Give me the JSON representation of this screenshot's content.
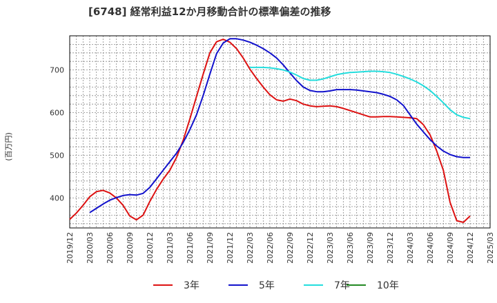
{
  "chart_data": {
    "type": "line",
    "title": "[6748]  経常利益12か月移動合計の標準偏差の推移",
    "ylabel": "(百万円)",
    "xlabel": "",
    "grid": true,
    "legend_position": "bottom",
    "ylim": [
      330,
      780
    ],
    "y_ticks": [
      400,
      500,
      600,
      700
    ],
    "x_range": [
      "2019-12",
      "2025-03"
    ],
    "x_ticks": [
      "2019/12",
      "2020/03",
      "2020/06",
      "2020/09",
      "2020/12",
      "2021/03",
      "2021/06",
      "2021/09",
      "2021/12",
      "2022/03",
      "2022/06",
      "2022/09",
      "2022/12",
      "2023/03",
      "2023/06",
      "2023/09",
      "2023/12",
      "2024/03",
      "2024/06",
      "2024/09",
      "2024/12",
      "2025/03"
    ],
    "series": [
      {
        "name": "3年",
        "color": "#dd1111",
        "x": [
          "2019-12",
          "2020-01",
          "2020-02",
          "2020-03",
          "2020-04",
          "2020-05",
          "2020-06",
          "2020-07",
          "2020-08",
          "2020-09",
          "2020-10",
          "2020-11",
          "2020-12",
          "2021-01",
          "2021-02",
          "2021-03",
          "2021-04",
          "2021-05",
          "2021-06",
          "2021-07",
          "2021-08",
          "2021-09",
          "2021-10",
          "2021-11",
          "2021-12",
          "2022-01",
          "2022-02",
          "2022-03",
          "2022-04",
          "2022-05",
          "2022-06",
          "2022-07",
          "2022-08",
          "2022-09",
          "2022-10",
          "2022-11",
          "2022-12",
          "2023-01",
          "2023-02",
          "2023-03",
          "2023-04",
          "2023-05",
          "2023-06",
          "2023-07",
          "2023-08",
          "2023-09",
          "2023-10",
          "2023-11",
          "2023-12",
          "2024-01",
          "2024-02",
          "2024-03",
          "2024-04",
          "2024-05",
          "2024-06",
          "2024-07",
          "2024-08",
          "2024-09",
          "2024-10",
          "2024-11",
          "2024-12"
        ],
        "y": [
          350,
          365,
          383,
          403,
          415,
          418,
          412,
          400,
          383,
          358,
          349,
          360,
          392,
          420,
          444,
          465,
          495,
          535,
          585,
          638,
          690,
          740,
          766,
          772,
          765,
          750,
          728,
          702,
          680,
          660,
          642,
          630,
          627,
          632,
          628,
          620,
          616,
          614,
          615,
          616,
          614,
          610,
          605,
          600,
          595,
          590,
          590,
          591,
          591,
          590,
          589,
          588,
          586,
          572,
          548,
          510,
          465,
          390,
          347,
          343,
          358
        ]
      },
      {
        "name": "5年",
        "color": "#1111cc",
        "x": [
          "2020-03",
          "2020-04",
          "2020-05",
          "2020-06",
          "2020-07",
          "2020-08",
          "2020-09",
          "2020-10",
          "2020-11",
          "2020-12",
          "2021-01",
          "2021-02",
          "2021-03",
          "2021-04",
          "2021-05",
          "2021-06",
          "2021-07",
          "2021-08",
          "2021-09",
          "2021-10",
          "2021-11",
          "2021-12",
          "2022-01",
          "2022-02",
          "2022-03",
          "2022-04",
          "2022-05",
          "2022-06",
          "2022-07",
          "2022-08",
          "2022-09",
          "2022-10",
          "2022-11",
          "2022-12",
          "2023-01",
          "2023-02",
          "2023-03",
          "2023-04",
          "2023-05",
          "2023-06",
          "2023-07",
          "2023-08",
          "2023-09",
          "2023-10",
          "2023-11",
          "2023-12",
          "2024-01",
          "2024-02",
          "2024-03",
          "2024-04",
          "2024-05",
          "2024-06",
          "2024-07",
          "2024-08",
          "2024-09",
          "2024-10",
          "2024-11",
          "2024-12"
        ],
        "y": [
          366,
          376,
          386,
          395,
          401,
          406,
          408,
          407,
          411,
          425,
          445,
          465,
          485,
          505,
          530,
          560,
          595,
          640,
          690,
          738,
          763,
          773,
          773,
          770,
          765,
          758,
          750,
          740,
          728,
          712,
          693,
          675,
          660,
          652,
          649,
          649,
          651,
          654,
          654,
          654,
          653,
          651,
          649,
          647,
          643,
          638,
          630,
          617,
          595,
          573,
          555,
          537,
          522,
          510,
          502,
          497,
          495,
          495
        ]
      },
      {
        "name": "7年",
        "color": "#22dddd",
        "x": [
          "2022-03",
          "2022-04",
          "2022-05",
          "2022-06",
          "2022-07",
          "2022-08",
          "2022-09",
          "2022-10",
          "2022-11",
          "2022-12",
          "2023-01",
          "2023-02",
          "2023-03",
          "2023-04",
          "2023-05",
          "2023-06",
          "2023-07",
          "2023-08",
          "2023-09",
          "2023-10",
          "2023-11",
          "2023-12",
          "2024-01",
          "2024-02",
          "2024-03",
          "2024-04",
          "2024-05",
          "2024-06",
          "2024-07",
          "2024-08",
          "2024-09",
          "2024-10",
          "2024-11",
          "2024-12"
        ],
        "y": [
          706,
          706,
          706,
          705,
          703,
          700,
          695,
          688,
          680,
          676,
          676,
          679,
          684,
          689,
          692,
          694,
          695,
          696,
          697,
          697,
          696,
          694,
          690,
          685,
          679,
          672,
          663,
          652,
          638,
          623,
          607,
          595,
          589,
          586
        ]
      },
      {
        "name": "10年",
        "color": "#228822",
        "x": [],
        "y": []
      }
    ]
  }
}
